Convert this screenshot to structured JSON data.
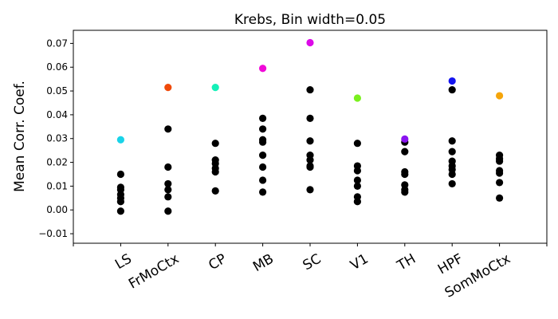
{
  "chart_data": {
    "type": "scatter",
    "title": "Krebs, Bin width=0.05",
    "xlabel": "",
    "ylabel": "Mean Corr. Coef.",
    "ylim": [
      -0.014,
      0.0755
    ],
    "yticks": [
      -0.01,
      0.0,
      0.01,
      0.02,
      0.03,
      0.04,
      0.05,
      0.06,
      0.07
    ],
    "ytick_labels": [
      "−0.01",
      "0.00",
      "0.01",
      "0.02",
      "0.03",
      "0.04",
      "0.05",
      "0.06",
      "0.07"
    ],
    "categories": [
      "LS",
      "FrMoCtx",
      "CP",
      "MB",
      "SC",
      "V1",
      "TH",
      "HPF",
      "SomMoCtx"
    ],
    "grid": false,
    "points": [
      {
        "category": "LS",
        "values": [
          0.015,
          0.0095,
          0.0085,
          0.0065,
          0.005,
          0.0035,
          -0.0005
        ],
        "highlight": 0.0295,
        "color": "#19d3e8"
      },
      {
        "category": "FrMoCtx",
        "values": [
          0.034,
          0.018,
          0.011,
          0.0085,
          0.0055,
          -0.0005
        ],
        "highlight": 0.0515,
        "color": "#f04a0a"
      },
      {
        "category": "CP",
        "values": [
          0.028,
          0.021,
          0.0195,
          0.0175,
          0.016,
          0.008
        ],
        "highlight": 0.0515,
        "color": "#14f0b8"
      },
      {
        "category": "MB",
        "values": [
          0.0385,
          0.034,
          0.0295,
          0.0285,
          0.023,
          0.018,
          0.0125,
          0.0075
        ],
        "highlight": 0.0595,
        "color": "#f00ad8"
      },
      {
        "category": "SC",
        "values": [
          0.0505,
          0.0385,
          0.029,
          0.023,
          0.021,
          0.0185,
          0.018,
          0.0085
        ],
        "highlight": 0.0703,
        "color": "#dc0ae8"
      },
      {
        "category": "V1",
        "values": [
          0.028,
          0.0185,
          0.0165,
          0.0125,
          0.01,
          0.0055,
          0.0035
        ],
        "highlight": 0.047,
        "color": "#7af01e"
      },
      {
        "category": "TH",
        "values": [
          0.0285,
          0.0245,
          0.016,
          0.015,
          0.0105,
          0.0085,
          0.0075
        ],
        "highlight": 0.0298,
        "color": "#8a14f0"
      },
      {
        "category": "HPF",
        "values": [
          0.0505,
          0.029,
          0.0245,
          0.0205,
          0.0185,
          0.017,
          0.015,
          0.011
        ],
        "highlight": 0.0542,
        "color": "#1414f0"
      },
      {
        "category": "SomMoCtx",
        "values": [
          0.023,
          0.0215,
          0.0205,
          0.0165,
          0.0155,
          0.0115,
          0.005
        ],
        "highlight": 0.048,
        "color": "#f5a50a"
      }
    ]
  }
}
